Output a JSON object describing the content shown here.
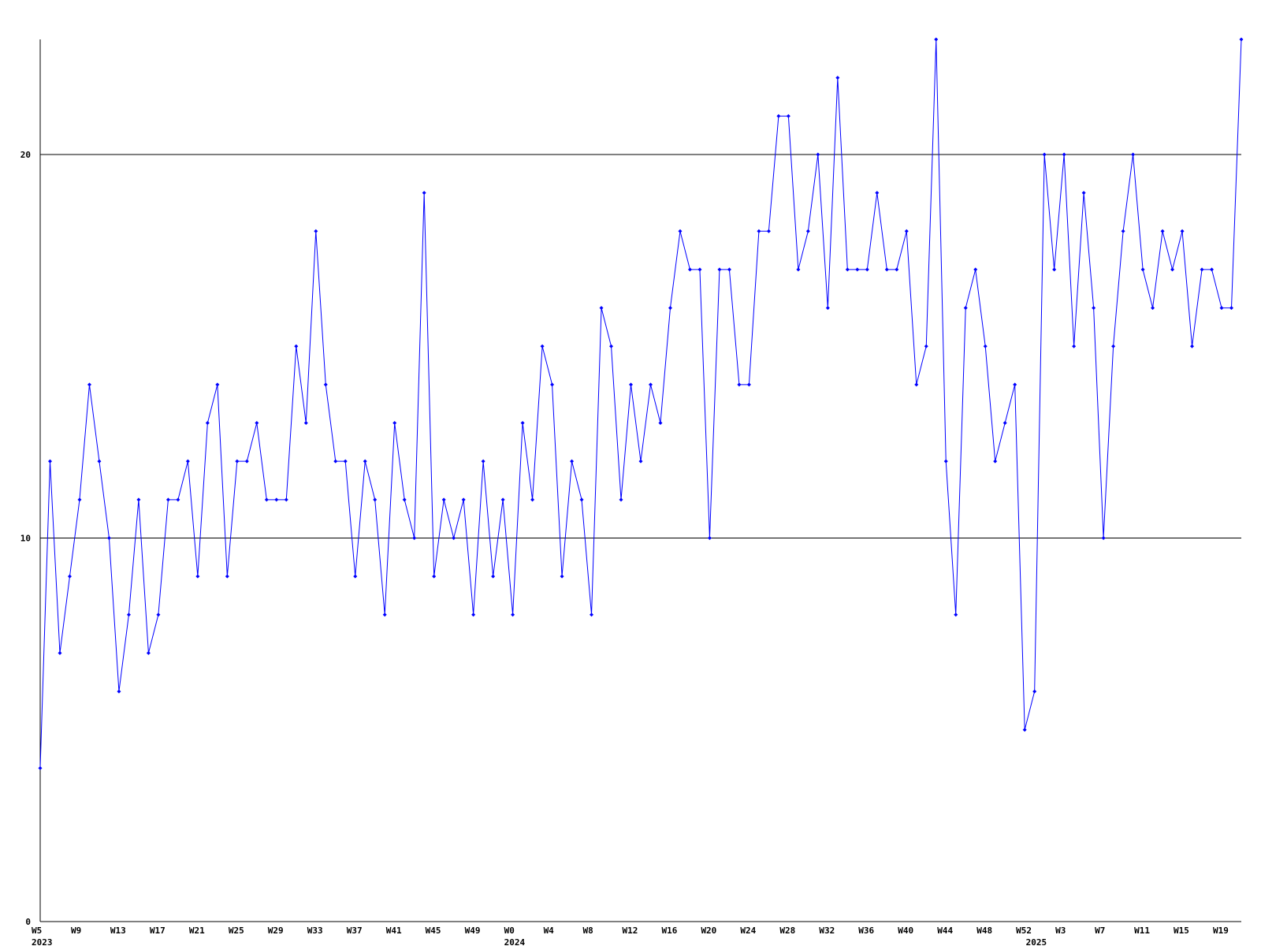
{
  "chart_data": {
    "type": "line",
    "categories": [
      "W5",
      null,
      null,
      null,
      "W9",
      null,
      null,
      null,
      "W13",
      null,
      null,
      null,
      "W17",
      null,
      null,
      null,
      "W21",
      null,
      null,
      null,
      "W25",
      null,
      null,
      null,
      "W29",
      null,
      null,
      null,
      "W33",
      null,
      null,
      null,
      "W37",
      null,
      null,
      null,
      "W41",
      null,
      null,
      null,
      "W45",
      null,
      null,
      null,
      "W49",
      null,
      null,
      null,
      "W0",
      null,
      null,
      null,
      "W4",
      null,
      null,
      null,
      "W8",
      null,
      null,
      null,
      "W12",
      null,
      null,
      null,
      "W16",
      null,
      null,
      null,
      "W20",
      null,
      null,
      null,
      "W24",
      null,
      null,
      null,
      "W28",
      null,
      null,
      null,
      "W32",
      null,
      null,
      null,
      "W36",
      null,
      null,
      null,
      "W40",
      null,
      null,
      null,
      "W44",
      null,
      null,
      null,
      "W48",
      null,
      null,
      null,
      "W52",
      null,
      null,
      null,
      "W3",
      null,
      null,
      null,
      "W7",
      null,
      null,
      null,
      "W11",
      null,
      null,
      null,
      "W15",
      null,
      null,
      null,
      "W19",
      null,
      null
    ],
    "years": [
      "2023",
      null,
      null,
      null,
      null,
      null,
      null,
      null,
      null,
      null,
      null,
      null,
      null,
      null,
      null,
      null,
      null,
      null,
      null,
      null,
      null,
      null,
      null,
      null,
      null,
      null,
      null,
      null,
      null,
      null,
      null,
      null,
      null,
      null,
      null,
      null,
      null,
      null,
      null,
      null,
      null,
      null,
      null,
      null,
      null,
      null,
      null,
      null,
      "2024",
      null,
      null,
      null,
      null,
      null,
      null,
      null,
      null,
      null,
      null,
      null,
      null,
      null,
      null,
      null,
      null,
      null,
      null,
      null,
      null,
      null,
      null,
      null,
      null,
      null,
      null,
      null,
      null,
      null,
      null,
      null,
      null,
      null,
      null,
      null,
      null,
      null,
      null,
      null,
      null,
      null,
      null,
      null,
      null,
      null,
      null,
      null,
      null,
      null,
      null,
      null,
      null,
      "2025",
      null,
      null,
      null,
      null,
      null,
      null,
      null,
      null,
      null,
      null,
      null,
      null,
      null,
      null,
      null,
      null,
      null,
      null,
      null,
      null
    ],
    "series": [
      {
        "color": "#0000ff",
        "values": [
          4,
          12,
          7,
          9,
          11,
          14,
          12,
          10,
          6,
          8,
          11,
          7,
          8,
          11,
          11,
          12,
          9,
          13,
          14,
          9,
          12,
          12,
          13,
          11,
          11,
          11,
          15,
          13,
          18,
          14,
          12,
          12,
          9,
          12,
          11,
          8,
          13,
          11,
          10,
          19,
          9,
          11,
          10,
          11,
          8,
          12,
          9,
          11,
          8,
          13,
          11,
          15,
          14,
          9,
          12,
          11,
          8,
          16,
          15,
          11,
          14,
          12,
          14,
          13,
          16,
          18,
          17,
          17,
          10,
          17,
          17,
          14,
          14,
          18,
          18,
          21,
          21,
          17,
          18,
          20,
          16,
          22,
          17,
          17,
          17,
          19,
          17,
          17,
          18,
          14,
          15,
          23,
          12,
          8,
          16,
          17,
          15,
          12,
          13,
          14,
          5,
          6,
          20,
          17,
          20,
          15,
          19,
          16,
          10,
          15,
          18,
          20,
          17,
          16,
          18,
          17,
          18,
          15,
          17,
          17,
          16,
          16,
          23
        ]
      }
    ],
    "ylim": [
      0,
      23
    ],
    "yticks": [
      0,
      10,
      20
    ],
    "grid": true
  }
}
